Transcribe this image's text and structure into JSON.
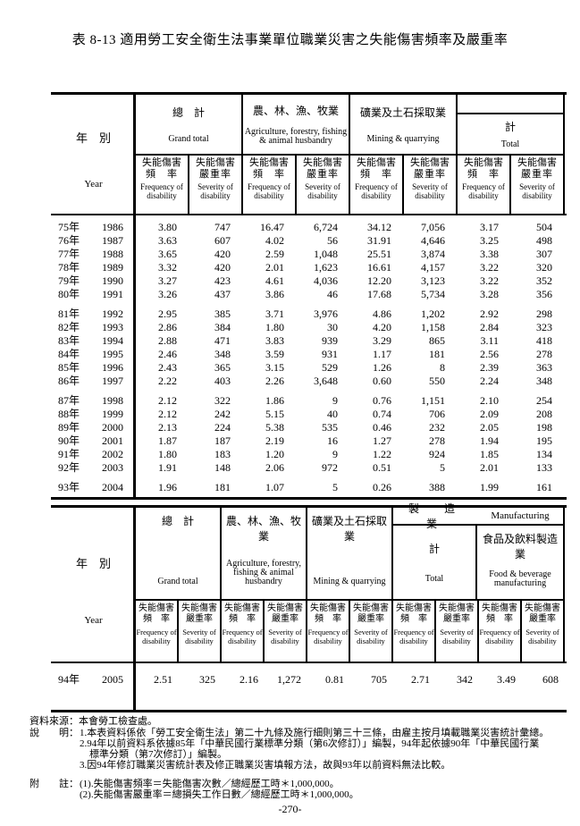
{
  "page": {
    "title": "表 8-13 適用勞工安全衛生法事業單位職業災害之失能傷害頻率及嚴重率",
    "page_number": "-270-"
  },
  "head_labels": {
    "year_cjk": "年　別",
    "year_en": "Year",
    "disab_cjk": "失能傷害",
    "freq_cjk": "頻　率",
    "sev_cjk": "嚴重率",
    "freq_en": "Frequency of disability",
    "sev_en": "Severity of disability"
  },
  "table1": {
    "groups": {
      "grand_total_cjk": "總　計",
      "grand_total_en": "Grand total",
      "agri_cjk": "農、林、漁、牧業",
      "agri_en": "Agriculture, forestry, fishing & animal husbandry",
      "mining_cjk": "礦業及土石採取業",
      "mining_en": "Mining & quarrying",
      "total_cjk": "計",
      "total_en": "Total"
    },
    "blocks": [
      [
        [
          "75年",
          "1986",
          "3.80",
          "747",
          "16.47",
          "6,724",
          "34.12",
          "7,056",
          "3.17",
          "504"
        ],
        [
          "76年",
          "1987",
          "3.63",
          "607",
          "4.02",
          "56",
          "31.91",
          "4,646",
          "3.25",
          "498"
        ],
        [
          "77年",
          "1988",
          "3.65",
          "420",
          "2.59",
          "1,048",
          "25.51",
          "3,874",
          "3.38",
          "307"
        ],
        [
          "78年",
          "1989",
          "3.32",
          "420",
          "2.01",
          "1,623",
          "16.61",
          "4,157",
          "3.22",
          "320"
        ],
        [
          "79年",
          "1990",
          "3.27",
          "423",
          "4.61",
          "4,036",
          "12.20",
          "3,123",
          "3.22",
          "352"
        ],
        [
          "80年",
          "1991",
          "3.26",
          "437",
          "3.86",
          "46",
          "17.68",
          "5,734",
          "3.28",
          "356"
        ]
      ],
      [
        [
          "81年",
          "1992",
          "2.95",
          "385",
          "3.71",
          "3,976",
          "4.86",
          "1,202",
          "2.92",
          "298"
        ],
        [
          "82年",
          "1993",
          "2.86",
          "384",
          "1.80",
          "30",
          "4.20",
          "1,158",
          "2.84",
          "323"
        ],
        [
          "83年",
          "1994",
          "2.88",
          "471",
          "3.83",
          "939",
          "3.29",
          "865",
          "3.11",
          "418"
        ],
        [
          "84年",
          "1995",
          "2.46",
          "348",
          "3.59",
          "931",
          "1.17",
          "181",
          "2.56",
          "278"
        ],
        [
          "85年",
          "1996",
          "2.43",
          "365",
          "3.15",
          "529",
          "1.26",
          "8",
          "2.39",
          "363"
        ],
        [
          "86年",
          "1997",
          "2.22",
          "403",
          "2.26",
          "3,648",
          "0.60",
          "550",
          "2.24",
          "348"
        ]
      ],
      [
        [
          "87年",
          "1998",
          "2.12",
          "322",
          "1.86",
          "9",
          "0.76",
          "1,151",
          "2.10",
          "254"
        ],
        [
          "88年",
          "1999",
          "2.12",
          "242",
          "5.15",
          "40",
          "0.74",
          "706",
          "2.09",
          "208"
        ],
        [
          "89年",
          "2000",
          "2.13",
          "224",
          "5.38",
          "535",
          "0.46",
          "232",
          "2.05",
          "198"
        ],
        [
          "90年",
          "2001",
          "1.87",
          "187",
          "2.19",
          "16",
          "1.27",
          "278",
          "1.94",
          "195"
        ],
        [
          "91年",
          "2002",
          "1.80",
          "183",
          "1.20",
          "9",
          "1.22",
          "924",
          "1.85",
          "134"
        ],
        [
          "92年",
          "2003",
          "1.91",
          "148",
          "2.06",
          "972",
          "0.51",
          "5",
          "2.01",
          "133"
        ]
      ],
      [
        [
          "93年",
          "2004",
          "1.96",
          "181",
          "1.07",
          "5",
          "0.26",
          "388",
          "1.99",
          "161"
        ]
      ]
    ]
  },
  "table2": {
    "groups": {
      "grand_total_cjk": "總　計",
      "grand_total_en": "Grand total",
      "agri_cjk": "農、林、漁、牧業",
      "agri_en": "Agriculture, forestry, fishing & animal husbandry",
      "mining_cjk": "礦業及土石採取業",
      "mining_en": "Mining & quarrying",
      "mfg_cjk": "製　造　業",
      "mfg_en": "Manufacturing",
      "total_cjk": "計",
      "total_en": "Total",
      "food_cjk": "食品及飲料製造業",
      "food_en": "Food & beverage manufacturing"
    },
    "blocks": [
      [
        [
          "94年",
          "2005",
          "2.51",
          "325",
          "2.16",
          "1,272",
          "0.81",
          "705",
          "2.71",
          "342",
          "3.49",
          "608"
        ]
      ]
    ]
  },
  "footer": {
    "source": "資料來源：本會勞工檢查處。",
    "note_label": "說　　明：",
    "notes": [
      "1.本表資料係依「勞工安全衛生法」第二十九條及施行細則第三十三條，由雇主按月填載職業災害統計彙總。",
      "2.94年以前資料系依據85年「中華民國行業標準分類（第6次修訂）」編製，94年起依據90年「中華民國行業",
      "　標準分類（第7次修訂）」編製。",
      "3.因94年修訂職業災害統計表及修正職業災害填報方法，故與93年以前資料無法比較。"
    ],
    "append_label": "附　　註：",
    "appendix": [
      "(1).失能傷害頻率＝失能傷害次數／總經歷工時＊1,000,000。",
      "(2).失能傷害嚴重率＝總損失工作日數／總經歷工時＊1,000,000。"
    ]
  }
}
